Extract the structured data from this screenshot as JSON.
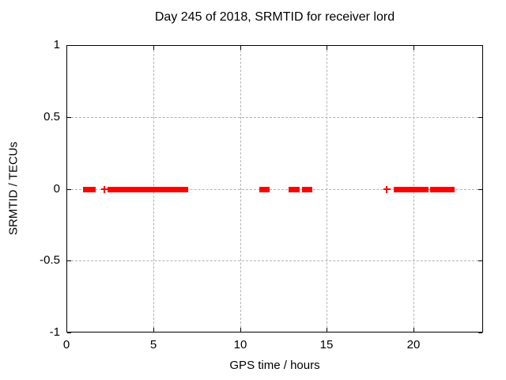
{
  "window": {
    "background": "#ffffff"
  },
  "chart_data": {
    "type": "scatter",
    "title": "Day 245 of 2018, SRMTID for receiver lord",
    "xlabel": "GPS time / hours",
    "ylabel": "SRMTID / TECUs",
    "xlim": [
      0,
      24
    ],
    "ylim": [
      -1,
      1
    ],
    "xticks": [
      0,
      5,
      10,
      15,
      20
    ],
    "yticks": [
      1,
      0.5,
      0,
      -0.5,
      -1
    ],
    "grid": true,
    "legend": "none",
    "marker": "plus",
    "series": [
      {
        "name": "SRMTID",
        "color": "#ff0000",
        "y_value": 0,
        "dense_segments_hours": [
          [
            0.97,
            1.68
          ],
          [
            2.35,
            6.99
          ],
          [
            11.12,
            11.73
          ],
          [
            12.8,
            13.43
          ],
          [
            13.55,
            14.16
          ],
          [
            18.85,
            20.85
          ],
          [
            20.97,
            22.4
          ]
        ],
        "isolated_points_hours": [
          2.19,
          18.44
        ]
      }
    ],
    "colors": {
      "grid": "#b3b3b3",
      "axis": "#000000",
      "text": "#000000"
    }
  }
}
